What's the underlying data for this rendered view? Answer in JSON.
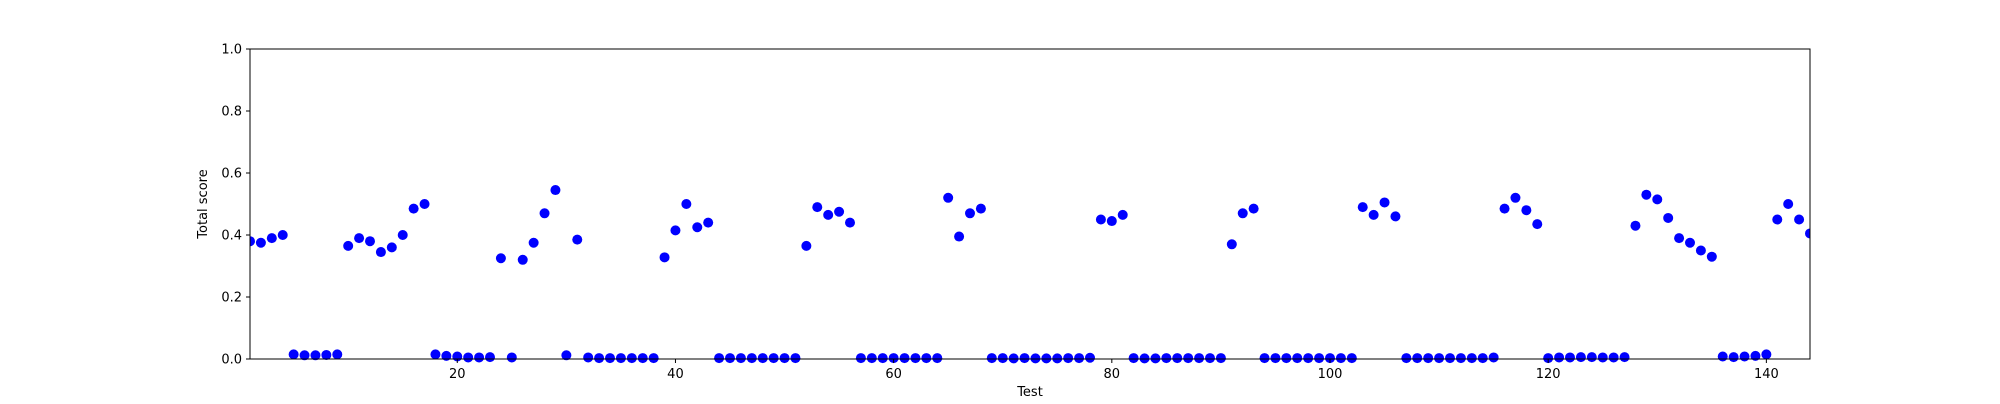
{
  "chart_data": {
    "type": "scatter",
    "xlabel": "Test",
    "ylabel": "Total score",
    "xlim": [
      1,
      144
    ],
    "ylim": [
      0.0,
      1.0
    ],
    "xticks": [
      20,
      40,
      60,
      80,
      100,
      120,
      140
    ],
    "yticks": [
      "0.0",
      "0.2",
      "0.4",
      "0.6",
      "0.8",
      "1.0"
    ],
    "grid": false,
    "marker_color": "#0000ff",
    "series": [
      {
        "x": [
          1,
          2,
          3,
          4,
          5,
          6,
          7,
          8,
          9,
          10,
          11,
          12,
          13,
          14,
          15,
          16,
          17,
          18,
          19,
          20,
          21,
          22,
          23,
          24,
          25,
          26,
          27,
          28,
          29,
          30,
          31,
          32,
          33,
          34,
          35,
          36,
          37,
          38,
          39,
          40,
          41,
          42,
          43,
          44,
          45,
          46,
          47,
          48,
          49,
          50,
          51,
          52,
          53,
          54,
          55,
          56,
          57,
          58,
          59,
          60,
          61,
          62,
          63,
          64,
          65,
          66,
          67,
          68,
          69,
          70,
          71,
          72,
          73,
          74,
          75,
          76,
          77,
          78,
          79,
          80,
          81,
          82,
          83,
          84,
          85,
          86,
          87,
          88,
          89,
          90,
          91,
          92,
          93,
          94,
          95,
          96,
          97,
          98,
          99,
          100,
          101,
          102,
          103,
          104,
          105,
          106,
          107,
          108,
          109,
          110,
          111,
          112,
          113,
          114,
          115,
          116,
          117,
          118,
          119,
          120,
          121,
          122,
          123,
          124,
          125,
          126,
          127,
          128,
          129,
          130,
          131,
          132,
          133,
          134,
          135,
          136,
          137,
          138,
          139,
          140,
          141,
          142,
          143,
          144
        ],
        "y": [
          0.38,
          0.375,
          0.39,
          0.4,
          0.015,
          0.012,
          0.012,
          0.013,
          0.015,
          0.365,
          0.39,
          0.38,
          0.345,
          0.36,
          0.4,
          0.485,
          0.5,
          0.015,
          0.01,
          0.008,
          0.005,
          0.005,
          0.006,
          0.325,
          0.005,
          0.32,
          0.375,
          0.47,
          0.545,
          0.012,
          0.385,
          0.005,
          0.003,
          0.003,
          0.003,
          0.003,
          0.003,
          0.003,
          0.328,
          0.415,
          0.5,
          0.425,
          0.44,
          0.003,
          0.003,
          0.003,
          0.003,
          0.003,
          0.003,
          0.003,
          0.003,
          0.365,
          0.49,
          0.465,
          0.475,
          0.44,
          0.003,
          0.003,
          0.003,
          0.003,
          0.003,
          0.003,
          0.003,
          0.003,
          0.52,
          0.395,
          0.47,
          0.485,
          0.003,
          0.003,
          0.002,
          0.003,
          0.002,
          0.002,
          0.002,
          0.003,
          0.003,
          0.004,
          0.45,
          0.445,
          0.465,
          0.003,
          0.002,
          0.002,
          0.003,
          0.003,
          0.003,
          0.003,
          0.003,
          0.003,
          0.37,
          0.47,
          0.485,
          0.003,
          0.003,
          0.003,
          0.003,
          0.003,
          0.003,
          0.003,
          0.003,
          0.003,
          0.49,
          0.465,
          0.505,
          0.46,
          0.003,
          0.003,
          0.003,
          0.003,
          0.003,
          0.003,
          0.003,
          0.003,
          0.005,
          0.485,
          0.52,
          0.48,
          0.435,
          0.003,
          0.005,
          0.005,
          0.006,
          0.006,
          0.005,
          0.005,
          0.006,
          0.43,
          0.53,
          0.515,
          0.455,
          0.39,
          0.375,
          0.35,
          0.33,
          0.008,
          0.006,
          0.008,
          0.01,
          0.015,
          0.45,
          0.5,
          0.45,
          0.405
        ]
      }
    ]
  }
}
